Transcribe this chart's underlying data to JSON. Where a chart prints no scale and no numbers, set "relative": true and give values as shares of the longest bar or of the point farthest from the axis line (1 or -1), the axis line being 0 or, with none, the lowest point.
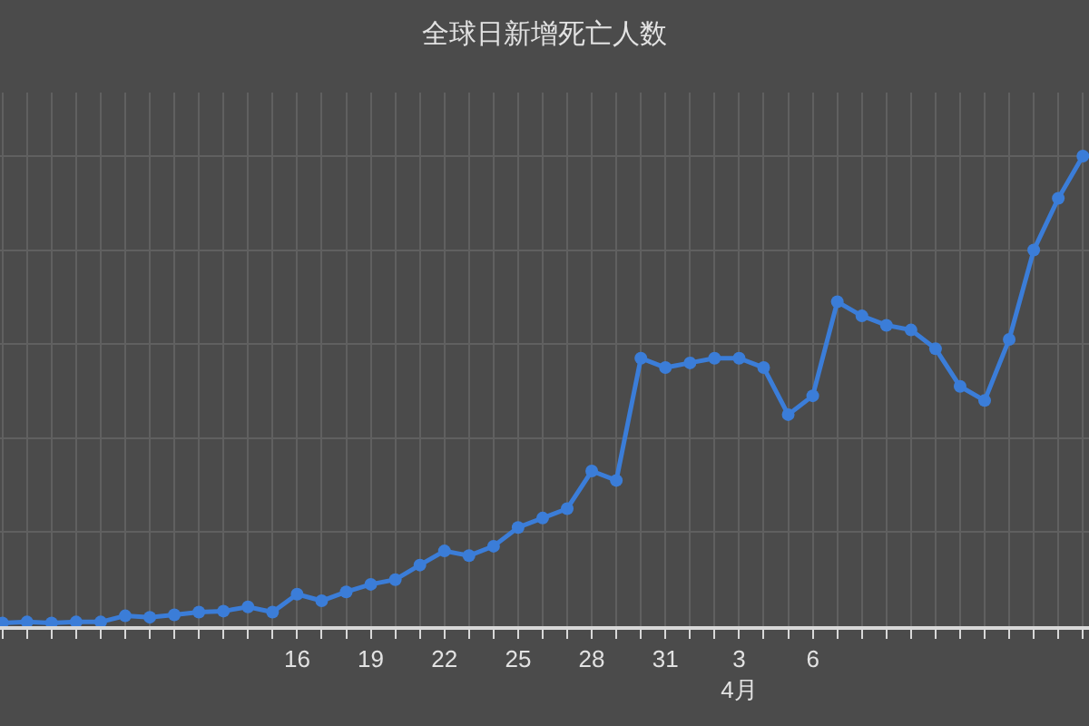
{
  "chart_data": {
    "type": "line",
    "title": "全球日新增死亡人数",
    "categories": [
      null,
      null,
      null,
      null,
      null,
      null,
      null,
      null,
      null,
      null,
      null,
      null,
      "16",
      null,
      null,
      "19",
      null,
      null,
      "22",
      null,
      null,
      "25",
      null,
      null,
      "28",
      null,
      null,
      "31",
      null,
      null,
      "3\n4月",
      null,
      null,
      "6",
      null,
      null,
      null,
      null,
      null,
      null,
      null,
      null,
      null,
      null,
      null
    ],
    "values": [
      0.007,
      0.009,
      0.007,
      0.009,
      0.009,
      0.022,
      0.019,
      0.024,
      0.03,
      0.032,
      0.041,
      0.03,
      0.068,
      0.054,
      0.073,
      0.089,
      0.099,
      0.13,
      0.16,
      0.15,
      0.17,
      0.21,
      0.23,
      0.25,
      0.33,
      0.31,
      0.57,
      0.55,
      0.56,
      0.57,
      0.57,
      0.55,
      0.45,
      0.49,
      0.69,
      0.66,
      0.64,
      0.63,
      0.59,
      0.51,
      0.48,
      0.61,
      0.8,
      0.91,
      1
    ],
    "color": "#3b7dd8",
    "relative": true,
    "grid": true,
    "legend": false,
    "marker": "circle",
    "line_style": "solid"
  }
}
